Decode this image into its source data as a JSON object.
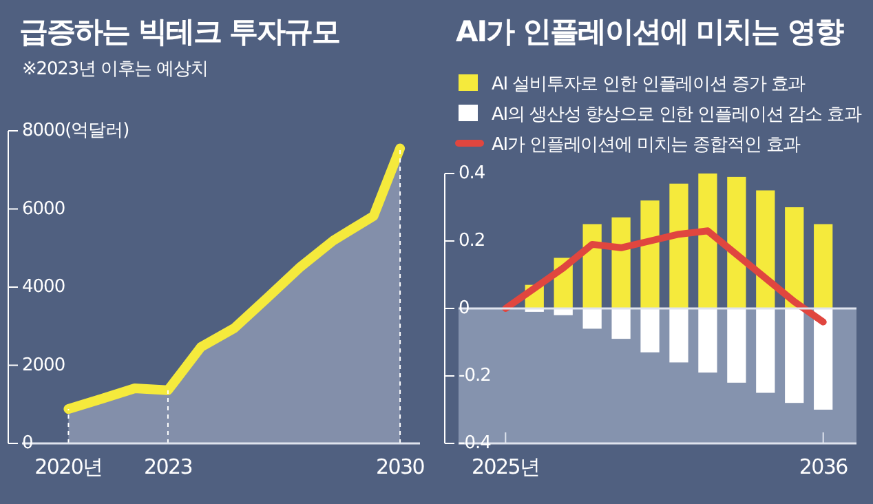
{
  "chart_data": [
    {
      "type": "area",
      "title": "급증하는 빅테크 투자규모",
      "subtitle": "※2023년 이후는 예상치",
      "x": [
        2020,
        2021,
        2022,
        2023,
        2024,
        2025,
        2026,
        2027,
        2028,
        2029.2,
        2030
      ],
      "series": [
        {
          "color": "#f5ea3c",
          "values": [
            880,
            1140,
            1410,
            1360,
            2470,
            2950,
            3730,
            4520,
            5200,
            5820,
            7550
          ]
        }
      ],
      "xlim": [
        2018.6,
        2030.6
      ],
      "ylim": [
        0,
        8000
      ],
      "xticks": [
        {
          "value": 2020,
          "label": "2020년"
        },
        2023,
        2030
      ],
      "yticks": [
        0,
        2000,
        4000,
        6000,
        {
          "value": 8000,
          "label": "8000(억달러)"
        }
      ],
      "ref_lines": [
        {
          "axis": "x",
          "value": 2020,
          "line_style": "dashed"
        },
        {
          "axis": "x",
          "value": 2023,
          "line_style": "dashed"
        },
        {
          "axis": "x",
          "value": 2030,
          "line_style": "dashed"
        }
      ],
      "grid": false,
      "legend": false
    },
    {
      "type": "bar",
      "title": "AI가 인플레이션에 미치는 영향",
      "stacked": true,
      "legend": "top left",
      "categories": [
        "2025년",
        null,
        null,
        null,
        null,
        null,
        null,
        null,
        null,
        null,
        null,
        "2036"
      ],
      "series": [
        {
          "name": "AI 설비투자로 인한 인플레이션 증가 효과",
          "color": "#f5ea3c",
          "values": [
            null,
            0.07,
            0.15,
            0.25,
            0.27,
            0.32,
            0.37,
            0.4,
            0.39,
            0.35,
            0.3,
            0.25
          ]
        },
        {
          "name": "AI의 생산성 향상으로 인한 인플레이션 감소 효과",
          "color": "#ffffff",
          "values": [
            null,
            -0.01,
            -0.02,
            -0.06,
            -0.09,
            -0.13,
            -0.16,
            -0.19,
            -0.22,
            -0.25,
            -0.28,
            -0.3
          ]
        },
        {
          "name": "AI가 인플레이션에 미치는 종합적인 효과",
          "type": "line",
          "color": "#e0463f",
          "values": [
            0,
            0.06,
            0.12,
            0.19,
            0.18,
            0.2,
            0.22,
            0.23,
            0.16,
            0.09,
            0.02,
            -0.04
          ]
        }
      ],
      "ylim": [
        -0.4,
        0.4
      ],
      "yticks": [
        -0.4,
        -0.2,
        0,
        0.2,
        0.4
      ],
      "ref_lines": [
        {
          "axis": "y",
          "value": 0,
          "color": "#dfe4ee"
        }
      ],
      "bands": [
        {
          "axis": "y",
          "from": -0.4,
          "to": 0,
          "color": "#8593ae"
        }
      ],
      "grid": false
    }
  ]
}
